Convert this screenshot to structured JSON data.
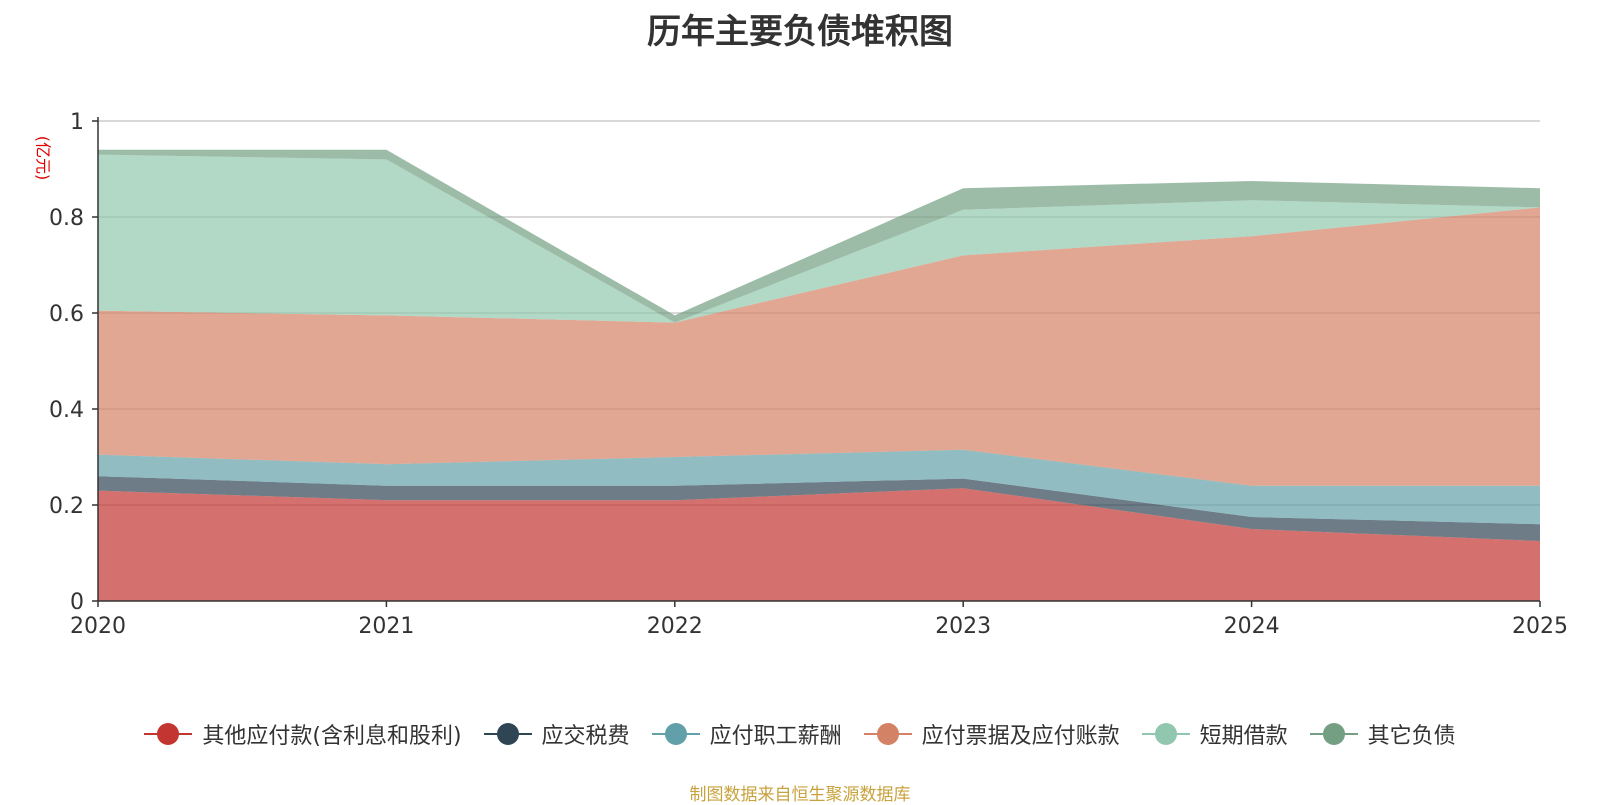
{
  "chart_data": {
    "type": "area",
    "stacked": true,
    "title": "历年主要负债堆积图",
    "ylabel": "(亿元)",
    "xlabel": "",
    "categories": [
      "2020",
      "2021",
      "2022",
      "2023",
      "2024",
      "2025"
    ],
    "ylim": [
      0,
      1
    ],
    "yticks": [
      0,
      0.2,
      0.4,
      0.6,
      0.8,
      1
    ],
    "ytick_labels": [
      "0",
      "0.2",
      "0.4",
      "0.6",
      "0.8",
      "1"
    ],
    "grid": true,
    "legend_position": "bottom",
    "series": [
      {
        "name": "其他应付款(含利息和股利)",
        "color": "#c23531",
        "values": [
          0.23,
          0.21,
          0.21,
          0.235,
          0.15,
          0.125
        ]
      },
      {
        "name": "应交税费",
        "color": "#2f4554",
        "values": [
          0.03,
          0.03,
          0.03,
          0.02,
          0.025,
          0.035
        ]
      },
      {
        "name": "应付职工薪酬",
        "color": "#61a0a8",
        "values": [
          0.045,
          0.045,
          0.06,
          0.06,
          0.065,
          0.08
        ]
      },
      {
        "name": "应付票据及应付账款",
        "color": "#d48265",
        "values": [
          0.3,
          0.31,
          0.28,
          0.405,
          0.52,
          0.58
        ]
      },
      {
        "name": "短期借款",
        "color": "#91c7ae",
        "values": [
          0.325,
          0.325,
          0.0,
          0.095,
          0.075,
          0.0
        ]
      },
      {
        "name": "其它负债",
        "color": "#749f83",
        "values": [
          0.01,
          0.02,
          0.015,
          0.045,
          0.04,
          0.04
        ]
      }
    ]
  },
  "source_note": "制图数据来自恒生聚源数据库"
}
